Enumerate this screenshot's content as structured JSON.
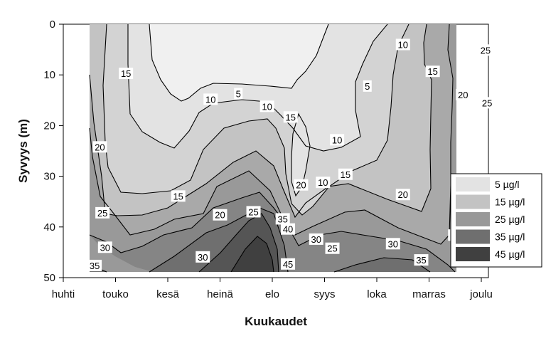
{
  "chart_data": {
    "type": "heatmap",
    "subtype": "contour",
    "title": "",
    "xlabel": "Kuukaudet",
    "ylabel": "Syvyys (m)",
    "x_ticks": [
      "huhti",
      "touko",
      "kesä",
      "heinä",
      "elo",
      "syys",
      "loka",
      "marras",
      "joulu"
    ],
    "y_ticks": [
      0,
      10,
      20,
      30,
      40,
      50
    ],
    "ylim": [
      0,
      50
    ],
    "y_inverted": true,
    "grid": false,
    "legend_position": "right",
    "legend": [
      {
        "label": "5  µg/l",
        "color": "#e3e3e3"
      },
      {
        "label": "15  µg/l",
        "color": "#c3c3c3"
      },
      {
        "label": "25  µg/l",
        "color": "#999999"
      },
      {
        "label": "35  µg/l",
        "color": "#6f6f6f"
      },
      {
        "label": "45  µg/l",
        "color": "#404040"
      }
    ],
    "contour_levels": [
      5,
      10,
      15,
      20,
      25,
      30,
      35,
      40,
      45
    ],
    "contour_labels": [
      {
        "value": "5",
        "month": 3.35,
        "depth": 13.7
      },
      {
        "value": "5",
        "month": 5.82,
        "depth": 12.2
      },
      {
        "value": "10",
        "month": 2.82,
        "depth": 14.8
      },
      {
        "value": "10",
        "month": 3.9,
        "depth": 16.2
      },
      {
        "value": "10",
        "month": 5.24,
        "depth": 22.8
      },
      {
        "value": "10",
        "month": 4.97,
        "depth": 31.2
      },
      {
        "value": "10",
        "month": 6.5,
        "depth": 4.0
      },
      {
        "value": "15",
        "month": 1.2,
        "depth": 9.7
      },
      {
        "value": "15",
        "month": 4.35,
        "depth": 18.3
      },
      {
        "value": "15",
        "month": 5.4,
        "depth": 29.6
      },
      {
        "value": "15",
        "month": 2.2,
        "depth": 33.9
      },
      {
        "value": "15",
        "month": 7.07,
        "depth": 9.3
      },
      {
        "value": "20",
        "month": 0.7,
        "depth": 24.2
      },
      {
        "value": "20",
        "month": 3.0,
        "depth": 37.6
      },
      {
        "value": "20",
        "month": 4.55,
        "depth": 31.7
      },
      {
        "value": "20",
        "month": 6.5,
        "depth": 33.6
      },
      {
        "value": "20",
        "month": 7.65,
        "depth": 13.9
      },
      {
        "value": "25",
        "month": 0.75,
        "depth": 37.2
      },
      {
        "value": "25",
        "month": 3.64,
        "depth": 37.0
      },
      {
        "value": "25",
        "month": 5.15,
        "depth": 44.2
      },
      {
        "value": "25",
        "month": 7.5,
        "depth": 41.6
      },
      {
        "value": "25",
        "month": 8.08,
        "depth": 5.1
      },
      {
        "value": "25",
        "month": 8.11,
        "depth": 15.5
      },
      {
        "value": "30",
        "month": 0.8,
        "depth": 44.0
      },
      {
        "value": "30",
        "month": 2.67,
        "depth": 45.9
      },
      {
        "value": "30",
        "month": 4.84,
        "depth": 42.4
      },
      {
        "value": "30",
        "month": 6.31,
        "depth": 43.3
      },
      {
        "value": "35",
        "month": 0.6,
        "depth": 47.6
      },
      {
        "value": "35",
        "month": 4.2,
        "depth": 38.4
      },
      {
        "value": "35",
        "month": 6.85,
        "depth": 46.5
      },
      {
        "value": "40",
        "month": 4.3,
        "depth": 40.4
      },
      {
        "value": "45",
        "month": 4.3,
        "depth": 47.3
      }
    ]
  }
}
